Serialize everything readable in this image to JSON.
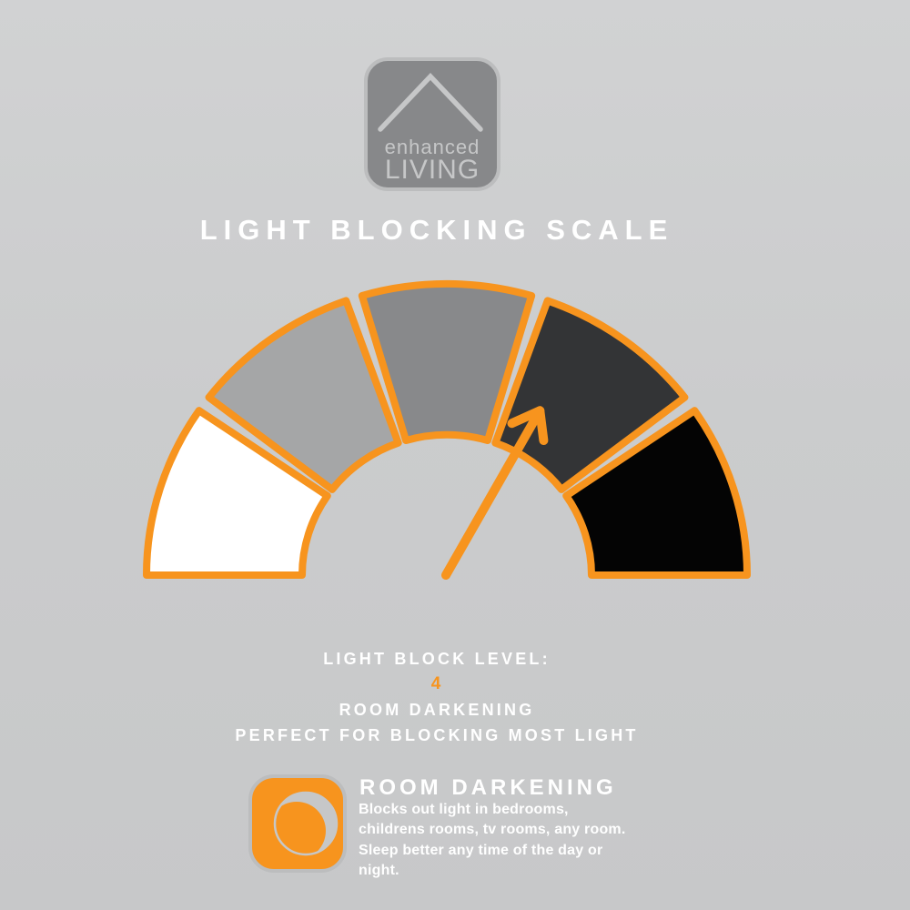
{
  "background_color": "#cbcccd",
  "accent_orange": "#f7941e",
  "logo": {
    "line1": "enhanced",
    "line2": "LIVING",
    "box_color": "#87888a",
    "border_color": "#bcbdbe",
    "glyph": "roof-icon",
    "text_color": "#c6c7c8"
  },
  "title": "LIGHT BLOCKING SCALE",
  "chart_data": {
    "type": "gauge",
    "title": "LIGHT BLOCKING SCALE",
    "arc_span_deg": 180,
    "segments": [
      {
        "level": 1,
        "color": "#ffffff"
      },
      {
        "level": 2,
        "color": "#a5a6a7"
      },
      {
        "level": 3,
        "color": "#88898b"
      },
      {
        "level": 4,
        "color": "#333436"
      },
      {
        "level": 5,
        "color": "#040404"
      }
    ],
    "selected_level": 4,
    "needle_angle_deg": 61,
    "outline_color": "#f7941e",
    "legend_position": "none",
    "grid": false
  },
  "level_info": {
    "label": "LIGHT BLOCK LEVEL:",
    "value": "4",
    "name": "ROOM DARKENING",
    "tagline": "PERFECT FOR BLOCKING MOST LIGHT",
    "value_color": "#f7941e"
  },
  "feature": {
    "icon": "moon-eclipse-icon",
    "heading": "ROOM DARKENING",
    "lines": [
      "Blocks out light in bedrooms,",
      "childrens rooms, tv rooms, any room.",
      "Sleep better any time of the day or",
      "night."
    ]
  }
}
